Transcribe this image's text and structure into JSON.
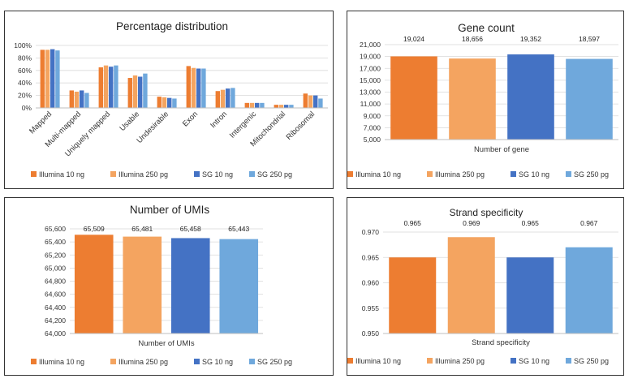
{
  "legend": {
    "series": [
      "Illumina 10 ng",
      "Illumina 250 pg",
      "SG 10 ng",
      "SG 250 pg"
    ],
    "colors": [
      "#ED7D31",
      "#F4A460",
      "#4472C4",
      "#6FA8DC"
    ]
  },
  "chart_data": [
    {
      "id": "pct",
      "type": "bar",
      "title": "Percentage distribution",
      "categories": [
        "Mapped",
        "Multi-mapped",
        "Uniquely mapped",
        "Usable",
        "Undesirable",
        "Exon",
        "Intron",
        "Intergenic",
        "Mitochondrial",
        "Ribosomal"
      ],
      "ylim": [
        0,
        100
      ],
      "yticks": [
        0,
        20,
        40,
        60,
        80,
        100
      ],
      "ytick_labels": [
        "0%",
        "20%",
        "40%",
        "60%",
        "80%",
        "100%"
      ],
      "grid": true,
      "legend_position": "bottom",
      "series": [
        {
          "name": "Illumina 10 ng",
          "values": [
            93,
            28,
            65,
            48,
            18,
            67,
            27,
            8,
            5,
            23
          ]
        },
        {
          "name": "Illumina 250 pg",
          "values": [
            93,
            26,
            68,
            52,
            17,
            64,
            29,
            8,
            5,
            20
          ]
        },
        {
          "name": "SG 10 ng",
          "values": [
            94,
            28,
            66,
            50,
            16,
            63,
            31,
            8,
            5,
            20
          ]
        },
        {
          "name": "SG 250 pg",
          "values": [
            92,
            24,
            68,
            55,
            15,
            63,
            32,
            8,
            5,
            15
          ]
        }
      ]
    },
    {
      "id": "gene",
      "type": "bar",
      "title": "Gene count",
      "xlabel": "Number of gene",
      "ylim": [
        5000,
        21000
      ],
      "yticks": [
        5000,
        7000,
        9000,
        11000,
        13000,
        15000,
        17000,
        19000,
        21000
      ],
      "ytick_labels": [
        "5,000",
        "7,000",
        "9,000",
        "11,000",
        "13,000",
        "15,000",
        "17,000",
        "19,000",
        "21,000"
      ],
      "grid": true,
      "legend_position": "bottom",
      "series": [
        {
          "name": "Illumina 10 ng",
          "value": 19024,
          "label": "19,024"
        },
        {
          "name": "Illumina 250 pg",
          "value": 18656,
          "label": "18,656"
        },
        {
          "name": "SG 10 ng",
          "value": 19352,
          "label": "19,352"
        },
        {
          "name": "SG 250 pg",
          "value": 18597,
          "label": "18,597"
        }
      ]
    },
    {
      "id": "umi",
      "type": "bar",
      "title": "Number of UMIs",
      "xlabel": "Number of UMIs",
      "ylim": [
        64000,
        65600
      ],
      "yticks": [
        64000,
        64200,
        64400,
        64600,
        64800,
        65000,
        65200,
        65400,
        65600
      ],
      "ytick_labels": [
        "64,000",
        "64,200",
        "64,400",
        "64,600",
        "64,800",
        "65,000",
        "65,200",
        "65,400",
        "65,600"
      ],
      "grid": true,
      "legend_position": "bottom",
      "series": [
        {
          "name": "Illumina 10 ng",
          "value": 65509,
          "label": "65,509"
        },
        {
          "name": "Illumina 250 pg",
          "value": 65481,
          "label": "65,481"
        },
        {
          "name": "SG 10 ng",
          "value": 65458,
          "label": "65,458"
        },
        {
          "name": "SG 250 pg",
          "value": 65443,
          "label": "65,443"
        }
      ]
    },
    {
      "id": "strand",
      "type": "bar",
      "title": "Strand specificity",
      "xlabel": "Strand specificity",
      "ylim": [
        0.95,
        0.97
      ],
      "yticks": [
        0.95,
        0.955,
        0.96,
        0.965,
        0.97
      ],
      "ytick_labels": [
        "0.950",
        "0.955",
        "0.960",
        "0.965",
        "0.970"
      ],
      "grid": true,
      "legend_position": "bottom",
      "series": [
        {
          "name": "Illumina 10 ng",
          "value": 0.965,
          "label": "0.965"
        },
        {
          "name": "Illumina 250 pg",
          "value": 0.969,
          "label": "0.969"
        },
        {
          "name": "SG 10 ng",
          "value": 0.965,
          "label": "0.965"
        },
        {
          "name": "SG 250 pg",
          "value": 0.967,
          "label": "0.967"
        }
      ]
    }
  ]
}
